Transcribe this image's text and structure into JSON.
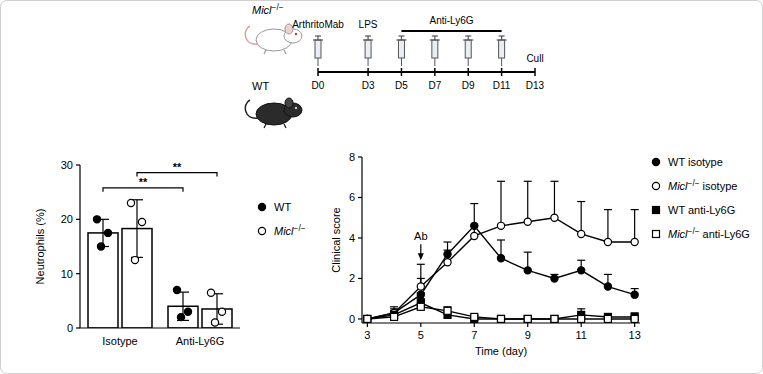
{
  "schematic": {
    "groups": [
      "Micl−/−",
      "WT"
    ],
    "range": [
      0,
      13
    ],
    "ticks": [
      {
        "value": 0,
        "label": "D0"
      },
      {
        "value": 3,
        "label": "D3"
      },
      {
        "value": 5,
        "label": "D5"
      },
      {
        "value": 7,
        "label": "D7"
      },
      {
        "value": 9,
        "label": "D9"
      },
      {
        "value": 11,
        "label": "D11"
      },
      {
        "value": 13,
        "label": "D13"
      }
    ],
    "events": [
      {
        "label": "ArthritoMab",
        "day": 0
      },
      {
        "label": "LPS",
        "day": 3
      },
      {
        "label": "Cull",
        "day": 13
      }
    ],
    "treatment": {
      "label": "Anti-Ly6G",
      "start": 5,
      "end": 11
    },
    "injection_days": [
      0,
      3,
      5,
      7,
      9,
      11
    ]
  },
  "chart_data": [
    {
      "type": "bar",
      "y_label": "Neutrophils (%)",
      "categories": [
        "Isotype",
        "Anti-Ly6G"
      ],
      "series": [
        {
          "name": "WT",
          "color": "#000000",
          "marker": "filled_circle",
          "values": [
            17.5,
            4.0
          ],
          "errors": [
            2.5,
            2.6
          ],
          "points": [
            [
              20,
              17.5,
              15
            ],
            [
              7,
              3,
              2
            ]
          ]
        },
        {
          "name": "Micl−/−",
          "color": "#000000",
          "marker": "open_circle",
          "values": [
            18.3,
            3.5
          ],
          "errors": [
            5.3,
            2.8
          ],
          "points": [
            [
              23,
              19.5,
              12.5
            ],
            [
              6.5,
              3,
              1
            ]
          ]
        }
      ],
      "ylim": [
        0,
        30
      ],
      "yticks": [
        0,
        10,
        20,
        30
      ],
      "legend": "right",
      "annotations": [
        {
          "text": "**",
          "series": 0,
          "from": 0,
          "to": 1,
          "y": 25.8
        },
        {
          "text": "**",
          "series": 1,
          "from": 0,
          "to": 1,
          "y": 28.6
        }
      ]
    },
    {
      "type": "line",
      "x_label": "Time (day)",
      "y_label": "Clinical score",
      "x": [
        3,
        4,
        5,
        6,
        7,
        8,
        9,
        10,
        11,
        12,
        13
      ],
      "xlim": [
        2.8,
        13.2
      ],
      "xticks": [
        3,
        5,
        7,
        9,
        11,
        13
      ],
      "ylim": [
        -0.2,
        8
      ],
      "yticks": [
        0,
        2,
        4,
        6,
        8
      ],
      "legend": "right",
      "series": [
        {
          "name": "WT isotype",
          "color": "#000000",
          "marker": "filled_circle",
          "line_style": "solid",
          "values": [
            0,
            0.3,
            1.2,
            3.2,
            4.6,
            3.0,
            2.4,
            2.0,
            2.4,
            1.6,
            1.2
          ],
          "errors": [
            0,
            0.3,
            0.8,
            0.6,
            1.1,
            0.9,
            0.9,
            0.2,
            0.5,
            0.6,
            0.3
          ]
        },
        {
          "name": "Micl−/− isotype",
          "color": "#000000",
          "marker": "open_circle",
          "line_style": "solid",
          "values": [
            0,
            0.3,
            1.6,
            2.8,
            4.1,
            4.6,
            4.8,
            5.0,
            4.2,
            3.8,
            3.8
          ],
          "errors": [
            0,
            0.2,
            1.1,
            0.6,
            0.5,
            2.2,
            2.0,
            1.8,
            1.6,
            1.6,
            1.6
          ]
        },
        {
          "name": "WT anti-Ly6G",
          "color": "#000000",
          "marker": "filled_square",
          "line_style": "solid",
          "values": [
            0,
            0.2,
            0.8,
            0.2,
            0,
            0,
            0,
            0,
            0.2,
            0.1,
            0.1
          ],
          "errors": [
            0,
            0.2,
            0.5,
            0.3,
            0,
            0,
            0,
            0,
            0.3,
            0,
            0.2
          ]
        },
        {
          "name": "Micl−/− anti-Ly6G",
          "color": "#000000",
          "marker": "open_square",
          "line_style": "solid",
          "values": [
            0,
            0.1,
            0.6,
            0.4,
            0.1,
            0,
            0,
            0,
            0,
            0,
            0
          ],
          "errors": [
            0,
            0.1,
            0.4,
            0.2,
            0.1,
            0,
            0,
            0,
            0,
            0,
            0
          ]
        }
      ],
      "annotations": [
        {
          "text": "Ab",
          "x": 5,
          "y": 2.9
        }
      ]
    }
  ]
}
